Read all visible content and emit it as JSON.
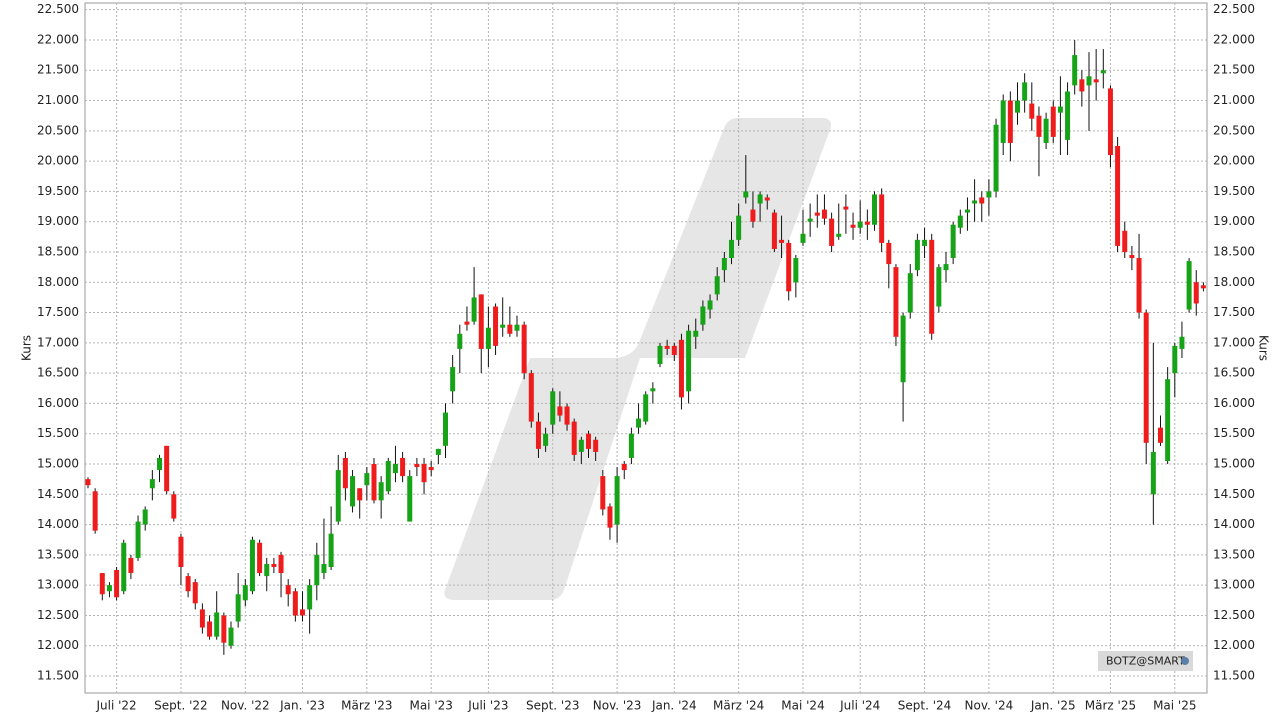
{
  "chart_data": {
    "type": "candlestick",
    "y_label": "Kurs",
    "y2_label": "Kurs",
    "source": "BOTZ@SMART",
    "grid": true,
    "up_color": "#17a317",
    "down_color": "#ee1c1c",
    "ylim": [
      11220,
      22610
    ],
    "yticks": [
      {
        "value": 11500,
        "label": "11.500"
      },
      {
        "value": 12000,
        "label": "12.000"
      },
      {
        "value": 12500,
        "label": "12.500"
      },
      {
        "value": 13000,
        "label": "13.000"
      },
      {
        "value": 13500,
        "label": "13.500"
      },
      {
        "value": 14000,
        "label": "14.000"
      },
      {
        "value": 14500,
        "label": "14.500"
      },
      {
        "value": 15000,
        "label": "15.000"
      },
      {
        "value": 15500,
        "label": "15.500"
      },
      {
        "value": 16000,
        "label": "16.000"
      },
      {
        "value": 16500,
        "label": "16.500"
      },
      {
        "value": 17000,
        "label": "17.000"
      },
      {
        "value": 17500,
        "label": "17.500"
      },
      {
        "value": 18000,
        "label": "18.000"
      },
      {
        "value": 18500,
        "label": "18.500"
      },
      {
        "value": 19000,
        "label": "19.000"
      },
      {
        "value": 19500,
        "label": "19.500"
      },
      {
        "value": 20000,
        "label": "20.000"
      },
      {
        "value": 20500,
        "label": "20.500"
      },
      {
        "value": 21000,
        "label": "21.000"
      },
      {
        "value": 21500,
        "label": "21.500"
      },
      {
        "value": 22000,
        "label": "22.000"
      },
      {
        "value": 22500,
        "label": "22.500"
      }
    ],
    "categories": [
      null,
      null,
      null,
      null,
      "Juli '22",
      null,
      null,
      null,
      null,
      null,
      null,
      null,
      null,
      "Sept. '22",
      null,
      null,
      null,
      null,
      null,
      null,
      null,
      null,
      "Nov. '22",
      null,
      null,
      null,
      null,
      null,
      null,
      null,
      "Jan. '23",
      null,
      null,
      null,
      null,
      null,
      null,
      null,
      null,
      "März '23",
      null,
      null,
      null,
      null,
      null,
      null,
      null,
      null,
      "Mai '23",
      null,
      null,
      null,
      null,
      null,
      null,
      null,
      "Juli '23",
      null,
      null,
      null,
      null,
      null,
      null,
      null,
      null,
      "Sept. '23",
      null,
      null,
      null,
      null,
      null,
      null,
      null,
      null,
      "Nov. '23",
      null,
      null,
      null,
      null,
      null,
      null,
      null,
      "Jan. '24",
      null,
      null,
      null,
      null,
      null,
      null,
      null,
      null,
      "März '24",
      null,
      null,
      null,
      null,
      null,
      null,
      null,
      null,
      "Mai '24",
      null,
      null,
      null,
      null,
      null,
      null,
      null,
      "Juli '24",
      null,
      null,
      null,
      null,
      null,
      null,
      null,
      null,
      "Sept. '24",
      null,
      null,
      null,
      null,
      null,
      null,
      null,
      null,
      "Nov. '24",
      null,
      null,
      null,
      null,
      null,
      null,
      null,
      null,
      "Jan. '25",
      null,
      null,
      null,
      null,
      null,
      null,
      null,
      "März '25",
      null,
      null,
      null,
      null,
      null,
      null,
      null,
      null,
      "Mai '25",
      null,
      null,
      null,
      null
    ],
    "open": [
      14750,
      14550,
      13200,
      12900,
      13250,
      12900,
      13450,
      13450,
      14000,
      14600,
      14900,
      15300,
      14500,
      13800,
      13150,
      13050,
      12600,
      12400,
      12150,
      12500,
      12000,
      12400,
      12750,
      12900,
      13700,
      13150,
      13350,
      13500,
      13000,
      12900,
      12600,
      12600,
      13000,
      13200,
      13300,
      14050,
      15100,
      14300,
      14600,
      14650,
      15000,
      14400,
      14550,
      14850,
      15100,
      14050,
      15000,
      15000,
      14950,
      15150,
      15300,
      16200,
      16900,
      17350,
      17350,
      17800,
      16900,
      17600,
      17250,
      17300,
      17200,
      17300,
      16500,
      15700,
      15300,
      15650,
      15950,
      15950,
      15700,
      15200,
      15500,
      15400,
      14800,
      14300,
      14000,
      15000,
      15100,
      15600,
      15700,
      16200,
      16650,
      16950,
      16950,
      17050,
      16200,
      17100,
      17300,
      17550,
      17800,
      18200,
      18400,
      18700,
      19400,
      19200,
      19300,
      19400,
      19150,
      18700,
      18650,
      18000,
      18650,
      19000,
      19150,
      19200,
      19050,
      18750,
      19250,
      18950,
      18900,
      19000,
      18950,
      19450,
      18650,
      18250,
      16350,
      17500,
      18200,
      18600,
      18700,
      17600,
      18200,
      18400,
      18900,
      19150,
      19300,
      19400,
      19400,
      19500,
      20300,
      21000,
      20800,
      21000,
      20950,
      20750,
      20300,
      20900,
      20800,
      20350,
      21250,
      21350,
      21250,
      21350,
      21450,
      21200,
      20250,
      18850,
      18450,
      18400,
      17500,
      14500,
      15600,
      15050,
      16500,
      16900,
      17550,
      18000,
      17950
    ],
    "high": [
      14780,
      14600,
      13200,
      13050,
      13300,
      13750,
      13500,
      14150,
      14300,
      14900,
      15150,
      15300,
      14550,
      13850,
      13200,
      13100,
      12700,
      12500,
      12900,
      12550,
      12400,
      13200,
      13100,
      13800,
      13750,
      13450,
      13450,
      13550,
      13100,
      12950,
      12900,
      13100,
      13700,
      14100,
      14300,
      15150,
      15200,
      14900,
      14600,
      14950,
      15100,
      14800,
      15100,
      15300,
      15200,
      14900,
      15100,
      15100,
      15050,
      15250,
      16000,
      16800,
      17300,
      17600,
      18250,
      17800,
      17600,
      17650,
      17750,
      17600,
      17450,
      17350,
      16550,
      15850,
      15600,
      16250,
      16200,
      16000,
      15750,
      15450,
      15550,
      15450,
      14900,
      14350,
      14950,
      15050,
      15600,
      16000,
      16200,
      16350,
      17000,
      17050,
      17000,
      17150,
      17300,
      17400,
      17700,
      17800,
      18250,
      18500,
      19000,
      19300,
      20100,
      19500,
      19500,
      19450,
      19200,
      19100,
      18700,
      18450,
      19200,
      19300,
      19450,
      19450,
      19150,
      19300,
      19450,
      19150,
      19350,
      19200,
      19500,
      19550,
      18700,
      18300,
      17500,
      18300,
      18800,
      18900,
      18800,
      18300,
      18500,
      19000,
      19200,
      19400,
      19700,
      19500,
      19700,
      20700,
      21100,
      21150,
      21300,
      21450,
      21300,
      20900,
      20800,
      21000,
      21400,
      21300,
      22000,
      21500,
      21800,
      21850,
      21850,
      21250,
      20400,
      19000,
      18600,
      18800,
      17550,
      17000,
      15800,
      16600,
      17000,
      17350,
      18400,
      18200,
      18000
    ],
    "low": [
      14600,
      13850,
      12750,
      12800,
      12750,
      12850,
      13100,
      13400,
      13900,
      14400,
      14700,
      14500,
      14050,
      13000,
      12800,
      12600,
      12200,
      12100,
      12100,
      11850,
      11950,
      12300,
      12650,
      12850,
      13150,
      12900,
      13200,
      12800,
      12650,
      12400,
      12400,
      12200,
      12750,
      13100,
      13250,
      14000,
      14400,
      14200,
      14100,
      14400,
      14350,
      14100,
      14500,
      14700,
      14700,
      14050,
      14800,
      14500,
      14800,
      15000,
      15100,
      16000,
      16500,
      17200,
      17300,
      16500,
      16600,
      16800,
      17100,
      17100,
      17100,
      16400,
      15600,
      15100,
      15200,
      15500,
      15700,
      15550,
      15050,
      15000,
      15100,
      15050,
      14150,
      13750,
      13700,
      14750,
      15000,
      15500,
      15650,
      16000,
      16600,
      16800,
      16700,
      15900,
      16000,
      16900,
      17200,
      17400,
      17700,
      18000,
      18300,
      18600,
      19300,
      18900,
      19000,
      19200,
      18500,
      18400,
      17700,
      17750,
      18600,
      18750,
      18900,
      18950,
      18500,
      18700,
      18800,
      18700,
      18800,
      18700,
      18850,
      18500,
      17900,
      16950,
      15700,
      17400,
      18100,
      18400,
      17050,
      17500,
      18000,
      18300,
      18800,
      18850,
      19000,
      19000,
      19100,
      19400,
      20100,
      20000,
      20600,
      20800,
      20500,
      19750,
      20200,
      20300,
      20100,
      20100,
      21100,
      20900,
      20500,
      21000,
      21200,
      19900,
      18500,
      18400,
      18200,
      17400,
      15000,
      14000,
      15300,
      15000,
      16100,
      16750,
      17500,
      17450,
      17850
    ],
    "close": [
      14650,
      13900,
      12850,
      13000,
      12800,
      13700,
      13200,
      14050,
      14250,
      14750,
      15100,
      14550,
      14100,
      13300,
      12900,
      12700,
      12300,
      12150,
      12550,
      12050,
      12300,
      12850,
      13000,
      13750,
      13200,
      13350,
      13300,
      13200,
      12850,
      12500,
      12500,
      13000,
      13500,
      13350,
      13850,
      14900,
      14600,
      14800,
      14400,
      14850,
      14400,
      14700,
      15050,
      15000,
      14800,
      14800,
      14950,
      14700,
      14900,
      15250,
      15850,
      16600,
      17150,
      17300,
      17750,
      16900,
      17250,
      16950,
      17300,
      17150,
      17300,
      16500,
      15700,
      15250,
      15500,
      16200,
      15800,
      15650,
      15150,
      15400,
      15250,
      15200,
      14250,
      13950,
      14800,
      14900,
      15500,
      15750,
      16150,
      16250,
      16950,
      16900,
      16800,
      16100,
      17200,
      17200,
      17600,
      17700,
      18100,
      18400,
      18700,
      19100,
      19500,
      19000,
      19450,
      19350,
      18550,
      18650,
      17850,
      18400,
      18800,
      19050,
      19100,
      19050,
      18600,
      18800,
      19200,
      18900,
      19000,
      18950,
      19450,
      18650,
      18300,
      17100,
      17450,
      18150,
      18700,
      18700,
      17150,
      18250,
      18300,
      18950,
      19100,
      19200,
      19350,
      19300,
      19500,
      20600,
      21000,
      20300,
      21000,
      21300,
      20700,
      20400,
      20700,
      20400,
      20900,
      21150,
      21750,
      21150,
      21400,
      21300,
      21500,
      20100,
      18600,
      18500,
      18400,
      17500,
      15350,
      15200,
      15350,
      16400,
      16950,
      17100,
      18350,
      17650,
      17900
    ]
  }
}
